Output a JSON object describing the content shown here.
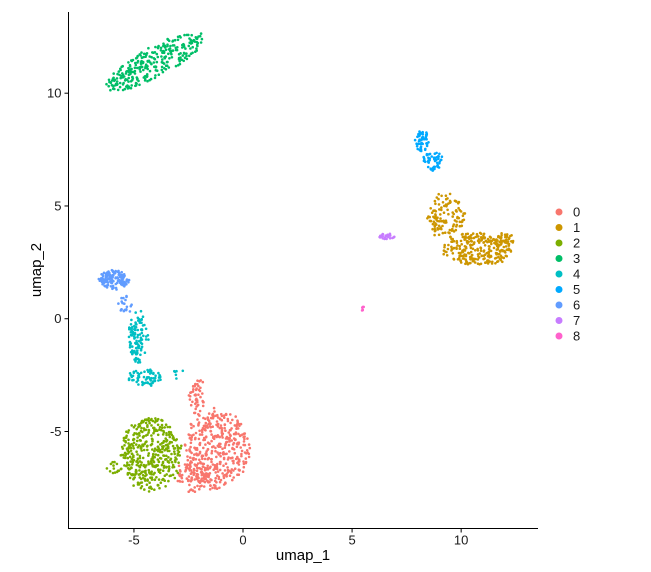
{
  "chart_data": {
    "type": "scatter",
    "title": "",
    "xlabel": "umap_1",
    "ylabel": "umap_2",
    "xlim": [
      -8,
      13.5
    ],
    "ylim": [
      -9.3,
      13.6
    ],
    "x_ticks": [
      -5,
      0,
      5,
      10
    ],
    "y_ticks": [
      -5,
      0,
      5,
      10
    ],
    "grid": false,
    "legend_position": "right",
    "series": [
      {
        "name": "0",
        "color": "#F8766D",
        "regions": [
          {
            "cx": -1.2,
            "cy": -5.8,
            "rx": 1.75,
            "ry": 2.1,
            "n": 420
          },
          {
            "cx": -2.3,
            "cy": -7.0,
            "rx": 0.9,
            "ry": 0.8,
            "n": 80
          },
          {
            "cx": -2.1,
            "cy": -3.5,
            "rx": 0.45,
            "ry": 1.0,
            "n": 50
          }
        ]
      },
      {
        "name": "1",
        "color": "#CD9600",
        "regions": [
          {
            "cx": 9.3,
            "cy": 4.6,
            "rx": 1.0,
            "ry": 1.2,
            "n": 120
          },
          {
            "cx": 10.7,
            "cy": 3.1,
            "rx": 1.9,
            "ry": 0.85,
            "n": 260
          },
          {
            "cx": 12.0,
            "cy": 3.4,
            "rx": 0.55,
            "ry": 0.5,
            "n": 40
          }
        ]
      },
      {
        "name": "2",
        "color": "#7CAE00",
        "regions": [
          {
            "cx": -4.2,
            "cy": -6.0,
            "rx": 1.6,
            "ry": 1.9,
            "n": 420
          },
          {
            "cx": -5.9,
            "cy": -6.6,
            "rx": 0.45,
            "ry": 0.3,
            "n": 15
          }
        ]
      },
      {
        "name": "3",
        "color": "#00BE67",
        "regions": [
          {
            "cx": -4.0,
            "cy": 11.4,
            "rx": 3.0,
            "ry": 0.75,
            "rot": 27,
            "n": 300
          }
        ]
      },
      {
        "name": "4",
        "color": "#00BFC4",
        "regions": [
          {
            "cx": -4.8,
            "cy": -0.8,
            "rx": 0.55,
            "ry": 1.4,
            "n": 110
          },
          {
            "cx": -4.5,
            "cy": -2.6,
            "rx": 0.9,
            "ry": 0.45,
            "n": 70
          },
          {
            "cx": -3.0,
            "cy": -2.4,
            "rx": 0.3,
            "ry": 0.3,
            "n": 6
          }
        ]
      },
      {
        "name": "5",
        "color": "#00A9FF",
        "regions": [
          {
            "cx": 8.2,
            "cy": 7.9,
            "rx": 0.35,
            "ry": 0.6,
            "n": 60
          },
          {
            "cx": 8.7,
            "cy": 7.0,
            "rx": 0.55,
            "ry": 0.5,
            "n": 50
          }
        ]
      },
      {
        "name": "6",
        "color": "#619CFF",
        "regions": [
          {
            "cx": -5.9,
            "cy": 1.75,
            "rx": 0.8,
            "ry": 0.5,
            "n": 140
          },
          {
            "cx": -5.4,
            "cy": 0.6,
            "rx": 0.35,
            "ry": 0.5,
            "n": 20
          }
        ]
      },
      {
        "name": "7",
        "color": "#C77CFF",
        "regions": [
          {
            "cx": 6.6,
            "cy": 3.65,
            "rx": 0.4,
            "ry": 0.15,
            "n": 30
          }
        ]
      },
      {
        "name": "8",
        "color": "#FF61CC",
        "regions": [
          {
            "cx": 5.5,
            "cy": 0.45,
            "rx": 0.08,
            "ry": 0.12,
            "n": 6
          }
        ]
      }
    ]
  }
}
